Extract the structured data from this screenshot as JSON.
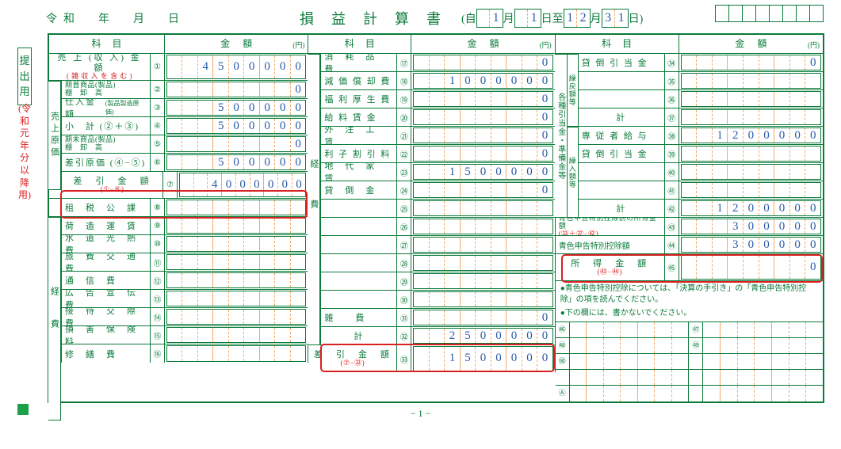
{
  "era_date": "令和　年　月　日",
  "title": "損益計算書",
  "period_prefix": "(自",
  "period_m1": [
    "",
    "1"
  ],
  "period_d1": [
    "",
    "1"
  ],
  "period_m2": [
    "1",
    "2"
  ],
  "period_d2": [
    "3",
    "1"
  ],
  "period_labels": [
    "月",
    "日至",
    "月",
    "日)"
  ],
  "side_label": "提出用",
  "side_label_red": "(令和元年分以降用)",
  "hdr_item": "科目",
  "hdr_amount": "金額",
  "hdr_yen": "(円)",
  "page_num": "− 1 −",
  "sections": {
    "col1_vlabel_top": "売上原価",
    "col1_vlabel_bot": "経費",
    "col2_vlabel": "経費",
    "col3_vlabel1": "各種引当金・準備金等",
    "col3_vlabel2": "繰戻額等",
    "col3_vlabel3": "繰入額等"
  },
  "col1": [
    {
      "label": "売 上 (収 入) 金 額",
      "sub": "( 雑 収 入 を 含 む )",
      "num": "①",
      "val": "4500000",
      "tall": true
    },
    {
      "label": "期首商品(製品)",
      "sub": "棚　卸　高",
      "num": "②",
      "val": "0",
      "v": "s"
    },
    {
      "label": "仕入金額",
      "sub": "(製品製造原価)",
      "num": "③",
      "val": "500000",
      "inline_sub": true,
      "v": "s"
    },
    {
      "label": "小　計 (②＋③)",
      "num": "④",
      "val": "500000",
      "v": "s"
    },
    {
      "label": "期末商品(製品)",
      "sub": "棚　卸　高",
      "num": "⑤",
      "val": "0",
      "v": "s"
    },
    {
      "label": "差引原価 (④−⑤)",
      "num": "⑥",
      "val": "500000",
      "v": "s"
    },
    {
      "label": "差　引　金　額",
      "sub": "(①−⑥)",
      "num": "⑦",
      "val": "4000000",
      "tall": true,
      "red": true
    },
    {
      "label": "租　税　公　課",
      "num": "⑧",
      "val": "",
      "v": "k"
    },
    {
      "label": "荷　造　運　賃",
      "num": "⑨",
      "val": "",
      "v": "k"
    },
    {
      "label": "水　道　光　熱　費",
      "num": "⑩",
      "val": "",
      "v": "k"
    },
    {
      "label": "旅　費　交　通　費",
      "num": "⑪",
      "val": "",
      "v": "k"
    },
    {
      "label": "通　信　費",
      "num": "⑫",
      "val": "",
      "v": "k"
    },
    {
      "label": "広　告　宣　伝　費",
      "num": "⑬",
      "val": "",
      "v": "k"
    },
    {
      "label": "接　待　交　際　費",
      "num": "⑭",
      "val": "",
      "v": "k"
    },
    {
      "label": "損　害　保　険　料",
      "num": "⑮",
      "val": "",
      "v": "k"
    },
    {
      "label": "修　繕　費",
      "num": "⑯",
      "val": "",
      "v": "k"
    }
  ],
  "col2": [
    {
      "label": "消　耗　品　費",
      "num": "⑰",
      "val": "0"
    },
    {
      "label": "減 価 償 却 費",
      "num": "⑱",
      "val": "1000000"
    },
    {
      "label": "福 利 厚 生 費",
      "num": "⑲",
      "val": "0"
    },
    {
      "label": "給 料 賃 金",
      "num": "⑳",
      "val": "0"
    },
    {
      "label": "外　注　工　賃",
      "num": "㉑",
      "val": "0"
    },
    {
      "label": "利 子 割 引 料",
      "num": "㉒",
      "val": "0"
    },
    {
      "label": "地　代　家　賃",
      "num": "㉓",
      "val": "1500000"
    },
    {
      "label": "貸　倒　金",
      "num": "㉔",
      "val": "0"
    },
    {
      "label": "",
      "num": "㉕",
      "val": ""
    },
    {
      "label": "",
      "num": "㉖",
      "val": ""
    },
    {
      "label": "",
      "num": "㉗",
      "val": ""
    },
    {
      "label": "",
      "num": "㉘",
      "val": ""
    },
    {
      "label": "",
      "num": "㉙",
      "val": ""
    },
    {
      "label": "",
      "num": "㉚",
      "val": ""
    },
    {
      "label": "雑　　費",
      "num": "㉛",
      "val": "0"
    },
    {
      "label": "計",
      "num": "㉜",
      "val": "2500000",
      "center": true
    },
    {
      "label": "差　引　金　額",
      "sub": "(⑦−㉜)",
      "num": "㉝",
      "val": "1500000",
      "tall": true,
      "red": true
    }
  ],
  "col3": [
    {
      "label": "貸 倒 引 当 金",
      "num": "㉞",
      "val": "0",
      "g": "m"
    },
    {
      "label": "",
      "num": "㉟",
      "val": "",
      "g": "m"
    },
    {
      "label": "",
      "num": "㊱",
      "val": "",
      "g": "m"
    },
    {
      "label": "計",
      "num": "㊲",
      "val": "",
      "center": true,
      "g": "m"
    },
    {
      "label": "専 従 者 給 与",
      "num": "㊳",
      "val": "1200000",
      "g": "k"
    },
    {
      "label": "貸 倒 引 当 金",
      "num": "㊴",
      "val": "",
      "g": "k"
    },
    {
      "label": "",
      "num": "㊵",
      "val": "",
      "g": "k"
    },
    {
      "label": "",
      "num": "㊶",
      "val": "",
      "g": "k"
    },
    {
      "label": "計",
      "num": "㊷",
      "val": "1200000",
      "center": true,
      "g": "k"
    },
    {
      "label": "青色申告特別控除前の所得金額",
      "sub": "(㉝＋㊲−㊷)",
      "num": "㊸",
      "val": "300000",
      "small": true
    },
    {
      "label": "青色申告特別控除額",
      "num": "㊹",
      "val": "300000",
      "small_label": true
    },
    {
      "label": "所　得　金　額",
      "sub": "(㊸−㊹)",
      "num": "㊺",
      "val": "0",
      "tall": true,
      "red": true
    }
  ],
  "note1": "●青色申告特別控除については、「決算の手引き」の「青色申告特別控除」の項を読んでください。",
  "note2": "●下の欄には、書かないでください。",
  "bottom_nums": [
    "㊻",
    "㊼",
    "㊽",
    "㊾",
    "㊿",
    "",
    "",
    "",
    "Ⓐ",
    ""
  ]
}
